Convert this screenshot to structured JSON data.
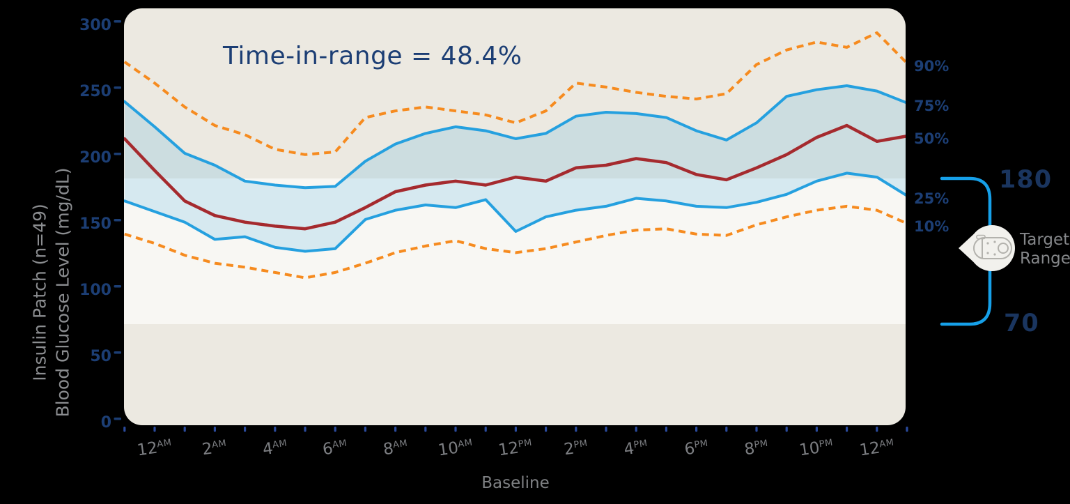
{
  "chart_data": {
    "type": "line",
    "title": "Time-in-range = 48.4%",
    "x_axis_label": "Baseline",
    "y_axis_titles": [
      "Insulin Patch (n=49)",
      "Blood Glucose Level (mg/dL)"
    ],
    "y_ticks": [
      0,
      50,
      100,
      150,
      200,
      250,
      300
    ],
    "y_range": [
      0,
      310
    ],
    "x_range_hours": [
      -1,
      25
    ],
    "x_tick_every_hours": 1,
    "x_tick_labels": [
      {
        "num": "12",
        "suffix": "AM"
      },
      {
        "num": "2",
        "suffix": "AM"
      },
      {
        "num": "4",
        "suffix": "AM"
      },
      {
        "num": "6",
        "suffix": "AM"
      },
      {
        "num": "8",
        "suffix": "AM"
      },
      {
        "num": "10",
        "suffix": "AM"
      },
      {
        "num": "12",
        "suffix": "PM"
      },
      {
        "num": "2",
        "suffix": "PM"
      },
      {
        "num": "4",
        "suffix": "PM"
      },
      {
        "num": "6",
        "suffix": "PM"
      },
      {
        "num": "8",
        "suffix": "PM"
      },
      {
        "num": "10",
        "suffix": "PM"
      },
      {
        "num": "12",
        "suffix": "AM"
      }
    ],
    "hours": [
      -1,
      0,
      1,
      2,
      3,
      4,
      5,
      6,
      7,
      8,
      9,
      10,
      11,
      12,
      13,
      14,
      15,
      16,
      17,
      18,
      19,
      20,
      21,
      22,
      23,
      24,
      25
    ],
    "series": [
      {
        "name": "90%",
        "style": "dashed",
        "color_key": "orange",
        "values": [
          268,
          252,
          234,
          220,
          213,
          202,
          198,
          200,
          226,
          231,
          234,
          231,
          228,
          222,
          231,
          252,
          249,
          245,
          242,
          240,
          244,
          266,
          277,
          283,
          279,
          290,
          267
        ]
      },
      {
        "name": "75%",
        "style": "solid",
        "color_key": "blue",
        "values": [
          238,
          219,
          199,
          190,
          178,
          175,
          173,
          174,
          193,
          206,
          214,
          219,
          216,
          210,
          214,
          227,
          230,
          229,
          226,
          216,
          209,
          222,
          242,
          247,
          250,
          246,
          237
        ]
      },
      {
        "name": "50%",
        "style": "solid",
        "color_key": "red",
        "values": [
          210,
          186,
          163,
          152,
          147,
          144,
          142,
          147,
          158,
          170,
          175,
          178,
          175,
          181,
          178,
          188,
          190,
          195,
          192,
          183,
          179,
          188,
          198,
          211,
          220,
          208,
          212
        ]
      },
      {
        "name": "25%",
        "style": "solid",
        "color_key": "blue",
        "values": [
          163,
          155,
          147,
          134,
          136,
          128,
          125,
          127,
          149,
          156,
          160,
          158,
          164,
          140,
          151,
          156,
          159,
          165,
          163,
          159,
          158,
          162,
          168,
          178,
          184,
          181,
          167
        ]
      },
      {
        "name": "10%",
        "style": "dashed",
        "color_key": "orange",
        "values": [
          138,
          131,
          122,
          116,
          113,
          109,
          105,
          109,
          116,
          124,
          129,
          133,
          127,
          124,
          127,
          132,
          137,
          141,
          142,
          138,
          137,
          145,
          151,
          156,
          159,
          156,
          146
        ]
      }
    ],
    "iqr_fill_between": [
      "75%",
      "25%"
    ],
    "percentile_labels": [
      "90%",
      "75%",
      "50%",
      "25%",
      "10%"
    ],
    "target_range": {
      "high": 180,
      "low": 70,
      "high_label": "180",
      "low_label": "70",
      "label": "Target Range"
    },
    "legend_position": "right",
    "grid": false,
    "colors": {
      "background": "#000000",
      "plot_bg": "#ECE9E1",
      "target_band": "#F8F7F3",
      "iqr_fill": "rgba(37,160,223,0.16)",
      "blue": "#25A0DF",
      "red": "#A52A2E",
      "orange": "#F68B1F",
      "navy": "#1C3E74",
      "x_tick": "#2A4A9C",
      "bracket": "#16A0E9",
      "icon_fill": "#F2F1ED",
      "icon_stroke": "#B3B2AD"
    }
  }
}
